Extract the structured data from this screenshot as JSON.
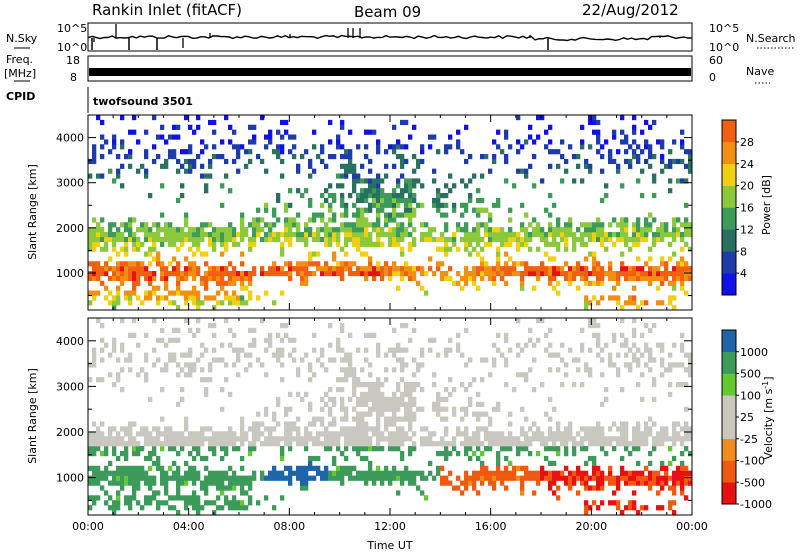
{
  "header": {
    "title": "Rankin Inlet (fitACF)",
    "beam": "Beam 09",
    "date": "22/Aug/2012"
  },
  "top_panels": {
    "nsky_label": "N.Sky",
    "nsky_ticks": [
      "10^5",
      "10^0"
    ],
    "nsearch_label": "N.Search",
    "nsearch_ticks": [
      "10^5",
      "10^0"
    ],
    "freq_label": "Freq.",
    "freq_unit": "[MHz]",
    "freq_ticks": [
      "18",
      "8"
    ],
    "nave_label": "Nave",
    "nave_ticks": [
      "60",
      "0"
    ],
    "cpid_label": "CPID",
    "cpid_value": "twofsound 3501"
  },
  "colors": {
    "power": [
      "#1010e8",
      "#1e3ca8",
      "#2a7060",
      "#3c9a5a",
      "#8cc83c",
      "#f0d010",
      "#f09010",
      "#f06010",
      "#e81010"
    ],
    "velocity": [
      "#e81010",
      "#f05a10",
      "#f08c1e",
      "#c8c8c0",
      "#c8c8c0",
      "#64c832",
      "#3c9a5a",
      "#1e64a8",
      "#1e28c8"
    ]
  },
  "chart_data": [
    {
      "type": "heatmap",
      "name": "power",
      "xlabel": "",
      "ylabel": "Slant Range [km]",
      "xlim": [
        0,
        24
      ],
      "ylim": [
        180,
        4500
      ],
      "yticks": [
        "1000",
        "2000",
        "3000",
        "4000"
      ],
      "colorbar_label": "Power [dB]",
      "colorbar_ticks": [
        "4",
        "8",
        "12",
        "16",
        "20",
        "24",
        "28"
      ],
      "colorbar_range": [
        0,
        32
      ]
    },
    {
      "type": "heatmap",
      "name": "velocity",
      "xlabel": "Time UT",
      "ylabel": "Slant Range [km]",
      "xlim": [
        0,
        24
      ],
      "ylim": [
        180,
        4500
      ],
      "xticks": [
        "00:00",
        "04:00",
        "08:00",
        "12:00",
        "16:00",
        "20:00",
        "00:00"
      ],
      "yticks": [
        "1000",
        "2000",
        "3000",
        "4000"
      ],
      "colorbar_label": "Velocity [m s-1]",
      "colorbar_ticks": [
        "1000",
        "500",
        "100",
        "25",
        "-25",
        "-100",
        "-500",
        "-1000"
      ]
    }
  ]
}
